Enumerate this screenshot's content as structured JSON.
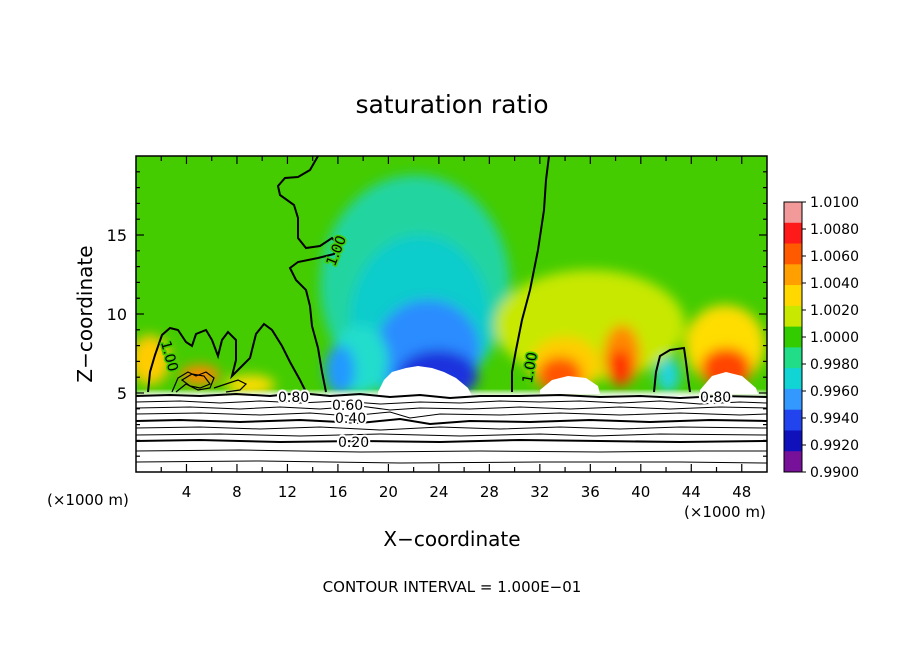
{
  "chart_data": {
    "type": "heatmap",
    "title": "saturation ratio",
    "xlabel": "X−coordinate",
    "ylabel": "Z−coordinate",
    "x_unit_left": "(×1000 m)",
    "x_unit_right": "(×1000 m)",
    "footer": "CONTOUR INTERVAL = 1.000E−01",
    "xlim": [
      0,
      50
    ],
    "ylim": [
      0,
      20
    ],
    "x_ticks": [
      "4",
      "8",
      "12",
      "16",
      "20",
      "24",
      "28",
      "32",
      "36",
      "40",
      "44",
      "48"
    ],
    "y_ticks": [
      "5",
      "10",
      "15"
    ],
    "colorbar": {
      "labels": [
        "1.0100",
        "1.0080",
        "1.0060",
        "1.0040",
        "1.0020",
        "1.0000",
        "0.9980",
        "0.9960",
        "0.9940",
        "0.9920",
        "0.9900"
      ],
      "colors": [
        "#f29a9a",
        "#ff1a1a",
        "#ff5a00",
        "#ff9f00",
        "#ffd800",
        "#c8e800",
        "#33cc00",
        "#22dd88",
        "#11d4d4",
        "#3399ff",
        "#2244ee",
        "#1111bb",
        "#771199"
      ],
      "range": [
        0.99,
        1.01
      ]
    },
    "contour_labels": [
      "1.00",
      "1.00",
      "1.00",
      "0.80",
      "0.60",
      "0.40",
      "0.20",
      "0.80"
    ],
    "background_value": 1.0
  }
}
